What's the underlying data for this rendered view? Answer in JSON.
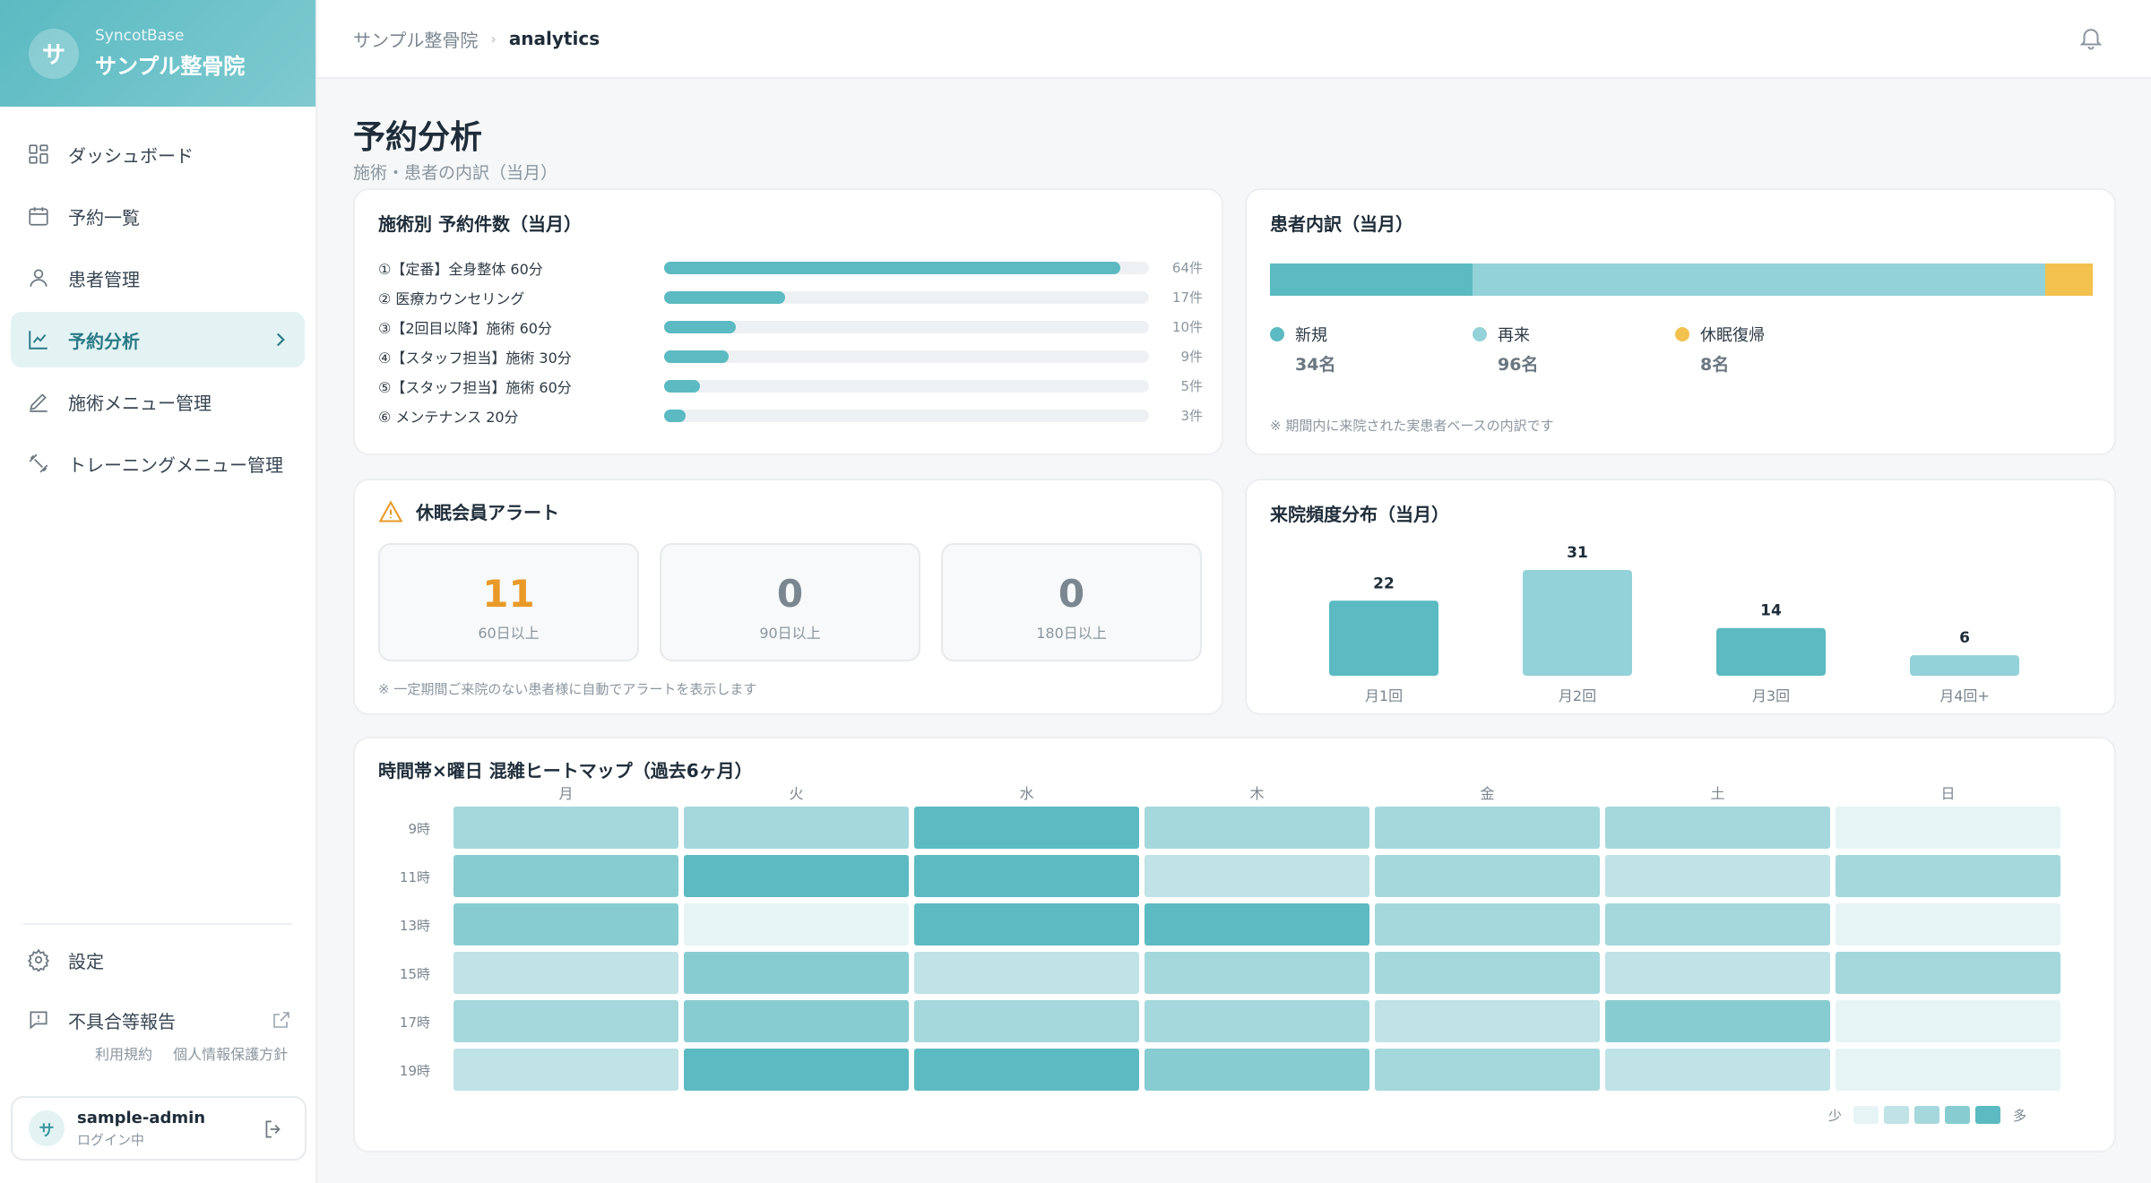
{
  "sidebar": {
    "brand_initial": "サ",
    "brand_sub": "SyncotBase",
    "brand_name": "サンプル整骨院",
    "items": [
      {
        "label": "ダッシュボード",
        "icon": "grid-icon"
      },
      {
        "label": "予約一覧",
        "icon": "calendar-icon"
      },
      {
        "label": "患者管理",
        "icon": "user-icon"
      },
      {
        "label": "予約分析",
        "icon": "chart-line-icon",
        "active": true
      },
      {
        "label": "施術メニュー管理",
        "icon": "pen-icon"
      },
      {
        "label": "トレーニングメニュー管理",
        "icon": "dumbbell-icon"
      }
    ],
    "settings_label": "設定",
    "report_label": "不具合等報告",
    "terms_label": "利用規約",
    "privacy_label": "個人情報保護方針",
    "user": {
      "initial": "サ",
      "name": "sample-admin",
      "status": "ログイン中"
    }
  },
  "header": {
    "breadcrumb_root": "サンプル整骨院",
    "breadcrumb_sep": "›",
    "breadcrumb_current": "analytics"
  },
  "page": {
    "title": "予約分析",
    "subtitle": "施術・患者の内訳（当月）"
  },
  "treatments": {
    "title": "施術別 予約件数（当月）",
    "max": 64,
    "items": [
      {
        "label": "①【定番】全身整体 60分",
        "value": 64,
        "count": "64件"
      },
      {
        "label": "② 医療カウンセリング",
        "value": 17,
        "count": "17件"
      },
      {
        "label": "③【2回目以降】施術 60分",
        "value": 10,
        "count": "10件"
      },
      {
        "label": "④【スタッフ担当】施術 30分",
        "value": 9,
        "count": "9件"
      },
      {
        "label": "⑤【スタッフ担当】施術 60分",
        "value": 5,
        "count": "5件"
      },
      {
        "label": "⑥ メンテナンス 20分",
        "value": 3,
        "count": "3件"
      }
    ]
  },
  "patients": {
    "title": "患者内訳（当月）",
    "segments": [
      {
        "label": "新規",
        "value": 34,
        "display": "34名",
        "color": "#5bbac2"
      },
      {
        "label": "再来",
        "value": 96,
        "display": "96名",
        "color": "#93d2d8"
      },
      {
        "label": "休眠復帰",
        "value": 8,
        "display": "8名",
        "color": "#f2c14e"
      }
    ],
    "note": "※ 期間内に来院された実患者ベースの内訳です"
  },
  "alerts": {
    "title": "休眠会員アラート",
    "boxes": [
      {
        "value": "11",
        "label": "60日以上"
      },
      {
        "value": "0",
        "label": "90日以上"
      },
      {
        "value": "0",
        "label": "180日以上"
      }
    ],
    "note": "※ 一定期間ご来院のない患者様に自動でアラートを表示します"
  },
  "frequency": {
    "title": "来院頻度分布（当月）"
  },
  "chart_data": {
    "type": "bar",
    "categories": [
      "月1回",
      "月2回",
      "月3回",
      "月4回+"
    ],
    "values": [
      22,
      31,
      14,
      6
    ],
    "colors": [
      "#5bbac2",
      "#93d2d8",
      "#5bbac2",
      "#93d2d8"
    ],
    "title": "来院頻度分布（当月）",
    "xlabel": "",
    "ylabel": "",
    "ylim": [
      0,
      31
    ]
  },
  "heatmap": {
    "title": "時間帯×曜日 混雑ヒートマップ（過去6ヶ月）",
    "days": [
      "月",
      "火",
      "水",
      "木",
      "金",
      "土",
      "日"
    ],
    "hours": [
      "9時",
      "11時",
      "13時",
      "15時",
      "17時",
      "19時"
    ],
    "levels": [
      [
        2,
        2,
        4,
        2,
        2,
        2,
        0
      ],
      [
        3,
        4,
        4,
        1,
        2,
        1,
        2
      ],
      [
        3,
        0,
        4,
        4,
        2,
        2,
        0
      ],
      [
        1,
        3,
        1,
        2,
        2,
        1,
        2
      ],
      [
        2,
        3,
        2,
        2,
        1,
        3,
        0
      ],
      [
        1,
        4,
        4,
        3,
        2,
        1,
        0
      ]
    ],
    "scale_colors": [
      "#e6f4f6",
      "#bfe3e6",
      "#a4d8dc",
      "#87ccd1",
      "#5bbac2"
    ],
    "legend_low": "少",
    "legend_high": "多"
  }
}
